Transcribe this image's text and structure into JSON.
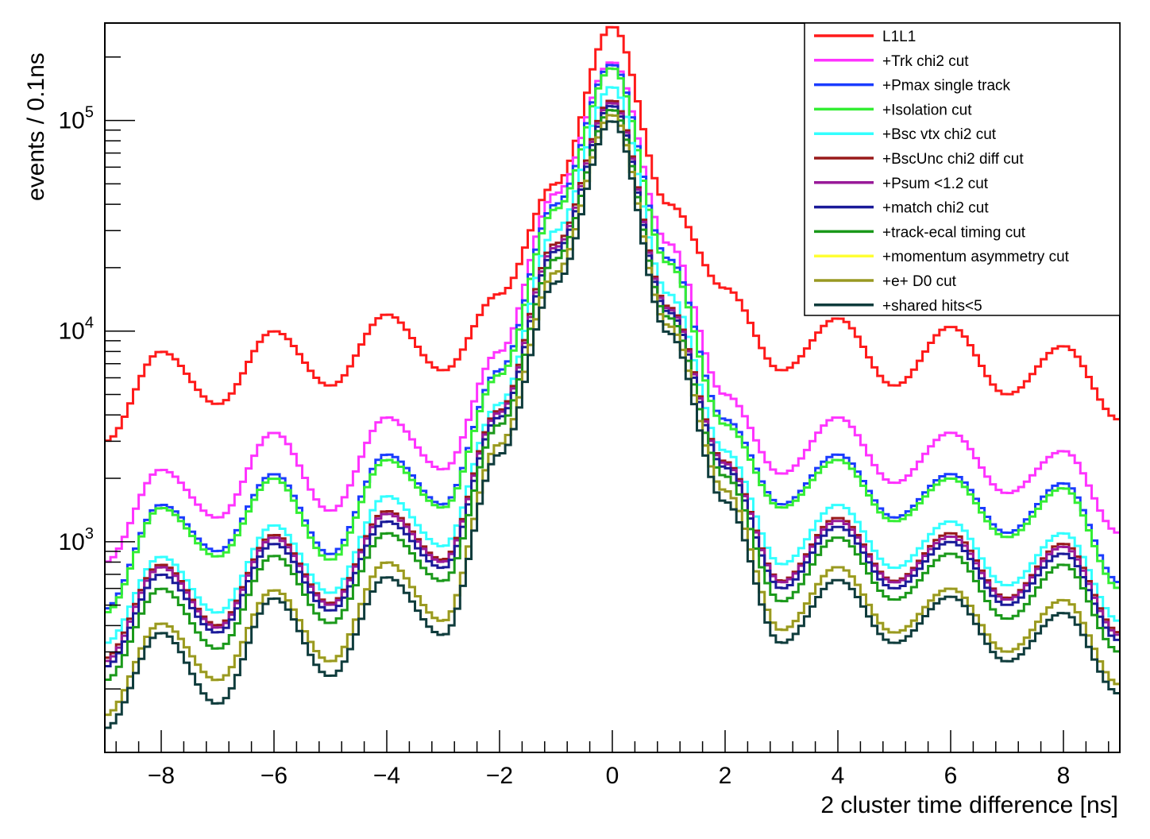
{
  "chart_data": {
    "type": "line",
    "title": "",
    "xlabel": "2 cluster time difference [ns]",
    "ylabel": "events / 0.1ns",
    "xlim": [
      -9,
      9
    ],
    "ylim": [
      100,
      290000
    ],
    "yscale": "log",
    "grid": false,
    "legend_position": "top-right",
    "x_ticks": [
      "−8",
      "−6",
      "−4",
      "−2",
      "0",
      "2",
      "4",
      "6",
      "8"
    ],
    "x_tick_values": [
      -8,
      -6,
      -4,
      -2,
      0,
      2,
      4,
      6,
      8
    ],
    "y_ticks": [
      {
        "base": "10",
        "exp": "3",
        "value": 1000
      },
      {
        "base": "10",
        "exp": "4",
        "value": 10000
      },
      {
        "base": "10",
        "exp": "5",
        "value": 100000
      }
    ],
    "x": [
      -9,
      -8,
      -7,
      -6,
      -5,
      -4,
      -3,
      -2,
      -1,
      0,
      1,
      2,
      3,
      4,
      5,
      6,
      7,
      8,
      9
    ],
    "series": [
      {
        "name": "L1L1",
        "color": "#ff1a1a",
        "values": [
          3000,
          8000,
          4500,
          10000,
          5500,
          12000,
          6500,
          15000,
          50000,
          280000,
          40000,
          16000,
          6500,
          11500,
          5500,
          10500,
          5000,
          8500,
          3800
        ]
      },
      {
        "name": "+Trk chi2 cut",
        "color": "#ff33ff",
        "values": [
          800,
          2200,
          1300,
          3300,
          1400,
          3900,
          2200,
          8000,
          45000,
          190000,
          26000,
          5000,
          2100,
          3900,
          1900,
          3300,
          1700,
          2700,
          1100
        ]
      },
      {
        "name": "+Pmax single track",
        "color": "#1a3cff",
        "values": [
          480,
          1500,
          900,
          2100,
          870,
          2600,
          1500,
          6500,
          40000,
          185000,
          22000,
          3800,
          1500,
          2600,
          1300,
          2100,
          1100,
          1900,
          640
        ]
      },
      {
        "name": "+Isolation cut",
        "color": "#33ee33",
        "values": [
          460,
          1450,
          850,
          2000,
          820,
          2450,
          1450,
          6200,
          38000,
          178000,
          21000,
          3600,
          1450,
          2450,
          1250,
          2000,
          1050,
          1800,
          600
        ]
      },
      {
        "name": "+Bsc vtx chi2 cut",
        "color": "#33ffff",
        "values": [
          330,
          850,
          460,
          1200,
          570,
          1650,
          950,
          4500,
          30000,
          145000,
          15000,
          2700,
          780,
          1500,
          750,
          1250,
          620,
          1100,
          420
        ]
      },
      {
        "name": "+BscUnc chi2 diff cut",
        "color": "#991a1a",
        "values": [
          280,
          780,
          400,
          1080,
          510,
          1400,
          820,
          4200,
          26000,
          125000,
          13000,
          2400,
          650,
          1300,
          650,
          1100,
          540,
          980,
          370
        ]
      },
      {
        "name": "+Psum <1.2 cut",
        "color": "#991a99",
        "values": [
          270,
          760,
          390,
          1050,
          500,
          1360,
          800,
          4100,
          25000,
          122000,
          12700,
          2350,
          640,
          1260,
          640,
          1060,
          530,
          950,
          360
        ]
      },
      {
        "name": "+match chi2 cut",
        "color": "#1a1a99",
        "values": [
          255,
          700,
          370,
          980,
          470,
          1250,
          750,
          3900,
          24000,
          118000,
          12300,
          2250,
          600,
          1180,
          600,
          1000,
          500,
          880,
          340
        ]
      },
      {
        "name": "+track-ecal timing cut",
        "color": "#1a991a",
        "values": [
          220,
          600,
          310,
          860,
          410,
          1100,
          650,
          3600,
          22000,
          113000,
          11600,
          2050,
          520,
          1050,
          530,
          880,
          430,
          780,
          300
        ]
      },
      {
        "name": "+momentum asymmetry cut",
        "color": "#ffff33",
        "values": [
          150,
          410,
          220,
          590,
          270,
          800,
          420,
          2900,
          19000,
          107000,
          10600,
          1750,
          380,
          760,
          370,
          600,
          300,
          530,
          210
        ]
      },
      {
        "name": "+e+ D0 cut",
        "color": "#999922",
        "values": [
          150,
          410,
          220,
          590,
          270,
          800,
          420,
          2900,
          19000,
          107000,
          10600,
          1750,
          380,
          760,
          370,
          600,
          300,
          530,
          210
        ]
      },
      {
        "name": "+shared hits<5",
        "color": "#0f3c3c",
        "values": [
          130,
          370,
          170,
          540,
          230,
          680,
          360,
          2600,
          17000,
          100000,
          9800,
          1550,
          330,
          660,
          330,
          550,
          270,
          460,
          190
        ]
      }
    ]
  }
}
